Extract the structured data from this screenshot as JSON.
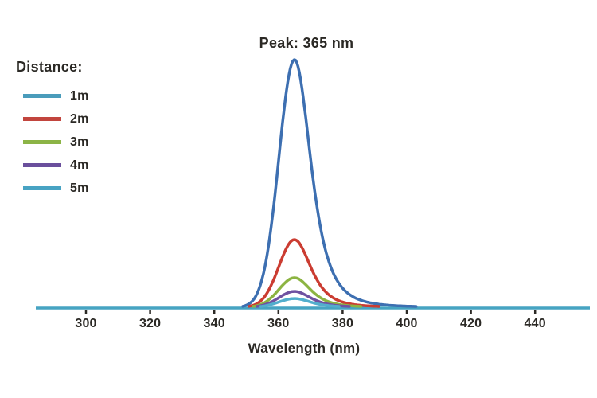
{
  "chart_data": {
    "type": "line",
    "title": "Peak: 365 nm",
    "xlabel": "Wavelength (nm)",
    "legend_title": "Distance:",
    "legend_position": "top-left",
    "grid": false,
    "x_ticks": [
      300,
      320,
      340,
      360,
      380,
      400,
      420,
      440
    ],
    "x_axis_range_nm": [
      284.5,
      457
    ],
    "peak_nm": 365,
    "axis_color": "#46a4c2",
    "text_color": "#2b2925",
    "background_color": "#ffffff",
    "series": [
      {
        "name": "1m",
        "distance_m": 1,
        "relative_intensity": 1.0,
        "color": "#3d6fb1",
        "swatch_color": "#4a9cbb"
      },
      {
        "name": "2m",
        "distance_m": 2,
        "relative_intensity": 0.273,
        "color": "#cb3c31",
        "swatch_color": "#c2453e"
      },
      {
        "name": "3m",
        "distance_m": 3,
        "relative_intensity": 0.119,
        "color": "#8cb442",
        "swatch_color": "#8cb446"
      },
      {
        "name": "4m",
        "distance_m": 4,
        "relative_intensity": 0.064,
        "color": "#6f51a1",
        "swatch_color": "#6a4f9c"
      },
      {
        "name": "5m",
        "distance_m": 5,
        "relative_intensity": 0.035,
        "color": "#52aecd",
        "swatch_color": "#48a3c3"
      }
    ],
    "peak_profile": {
      "left_gaussian_sigma_nm": 6.85,
      "right_lorentzian_gamma_nm": 9.3,
      "right_lorentzian_power": 2
    }
  }
}
